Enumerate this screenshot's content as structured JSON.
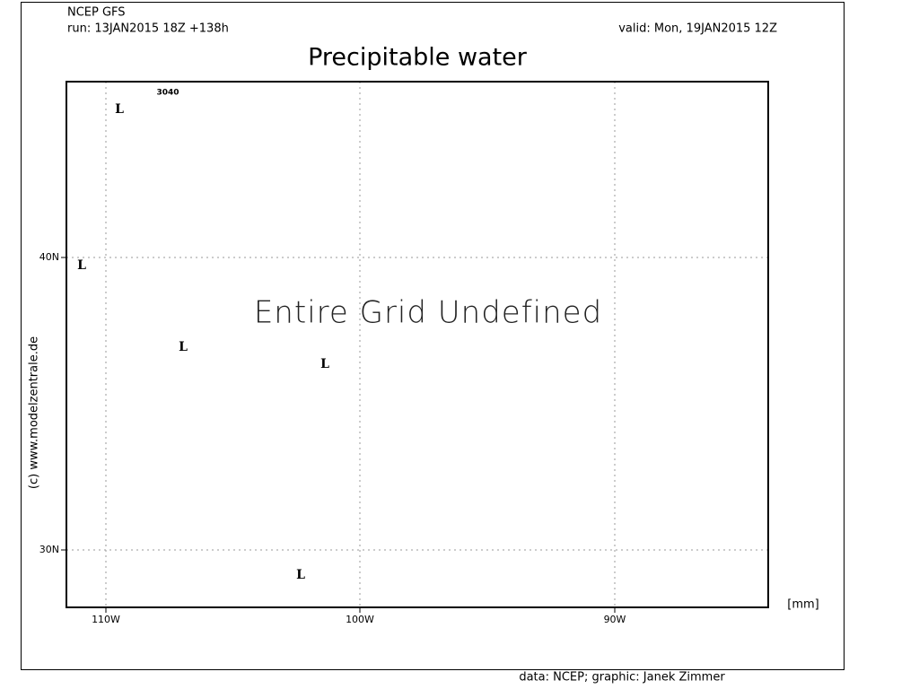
{
  "header": {
    "model": "NCEP GFS",
    "run": "run: 13JAN2015 18Z +138h",
    "valid": "valid: Mon, 19JAN2015 12Z",
    "title": "Precipitable water"
  },
  "map": {
    "message": "Entire Grid Undefined",
    "unit": "[mm]",
    "x_labels": [
      "110W",
      "100W",
      "90W"
    ],
    "y_labels": [
      "40N",
      "30N"
    ],
    "contour_label": "3040",
    "markers": [
      "L",
      "L",
      "L",
      "L",
      "L"
    ],
    "copyright": "(c) www.modelzentrale.de"
  },
  "footer": "data: NCEP; graphic: Janek Zimmer"
}
